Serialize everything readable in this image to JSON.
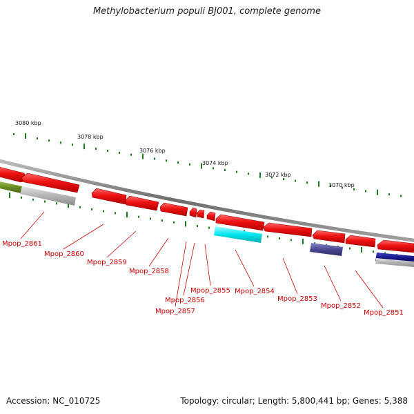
{
  "title": "Methylobacterium populi BJ001, complete genome",
  "accession": "Accession: NC_010725",
  "topology": "Topology: circular; Length: 5,800,441 bp; Genes: 5,388",
  "colors": {
    "forward_gene": "#ee1111",
    "backbone": "#777777",
    "tick": "#1a7a1a",
    "label": "#cc0000",
    "cyan_feature": "#00e5ee",
    "slate_feature": "#4a4890",
    "navy_feature": "#101080",
    "olive_feature": "#6b8e23",
    "gray_feature": "#b0b0b0"
  },
  "scale_labels": [
    "3080 kbp",
    "3078 kbp",
    "3076 kbp",
    "3074 kbp",
    "3072 kbp",
    "3070 kbp"
  ],
  "genes": [
    {
      "label": "Mpop_2861"
    },
    {
      "label": "Mpop_2860"
    },
    {
      "label": "Mpop_2859"
    },
    {
      "label": "Mpop_2858"
    },
    {
      "label": "Mpop_2857"
    },
    {
      "label": "Mpop_2856"
    },
    {
      "label": "Mpop_2855"
    },
    {
      "label": "Mpop_2854"
    },
    {
      "label": "Mpop_2853"
    },
    {
      "label": "Mpop_2852"
    },
    {
      "label": "Mpop_2851"
    }
  ]
}
